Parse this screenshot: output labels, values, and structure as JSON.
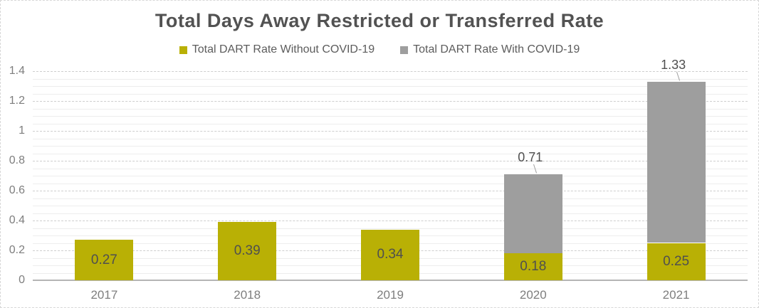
{
  "chart_data": {
    "type": "bar",
    "stacked": true,
    "title": "Total Days Away Restricted or Transferred Rate",
    "categories": [
      "2017",
      "2018",
      "2019",
      "2020",
      "2021"
    ],
    "series": [
      {
        "name": "Total DART Rate Without COVID-19",
        "color": "#b9b005",
        "values": [
          0.27,
          0.39,
          0.34,
          0.18,
          0.25
        ],
        "value_labels": [
          "0.27",
          "0.39",
          "0.34",
          "0.18",
          "0.25"
        ]
      },
      {
        "name": "Total DART Rate With COVID-19",
        "color": "#9e9e9e",
        "values": [
          0,
          0,
          0,
          0.53,
          1.08
        ],
        "value_labels": [
          "",
          "",
          "",
          "",
          ""
        ]
      }
    ],
    "stack_totals": [
      0.27,
      0.39,
      0.34,
      0.71,
      1.33
    ],
    "total_labels": [
      "",
      "",
      "",
      "0.71",
      "1.33"
    ],
    "ylim": [
      0,
      1.4
    ],
    "y_ticks": [
      0,
      0.2,
      0.4,
      0.6,
      0.8,
      1,
      1.2,
      1.4
    ],
    "y_tick_labels": [
      "0",
      "0.2",
      "0.4",
      "0.6",
      "0.8",
      "1",
      "1.2",
      "1.4"
    ],
    "minor_grid_step": 0.05,
    "grid": true,
    "legend_position": "top-center",
    "xlabel": "",
    "ylabel": ""
  },
  "colors": {
    "title_text": "#525252",
    "axis_text": "#7e7e7e",
    "bar_label_text": "#4f4f4f",
    "minor_gridline": "#ededed",
    "major_gridline": "#cecece",
    "baseline": "#b5b5b5",
    "frame_border": "#d7d7d7",
    "background": "#ffffff"
  }
}
